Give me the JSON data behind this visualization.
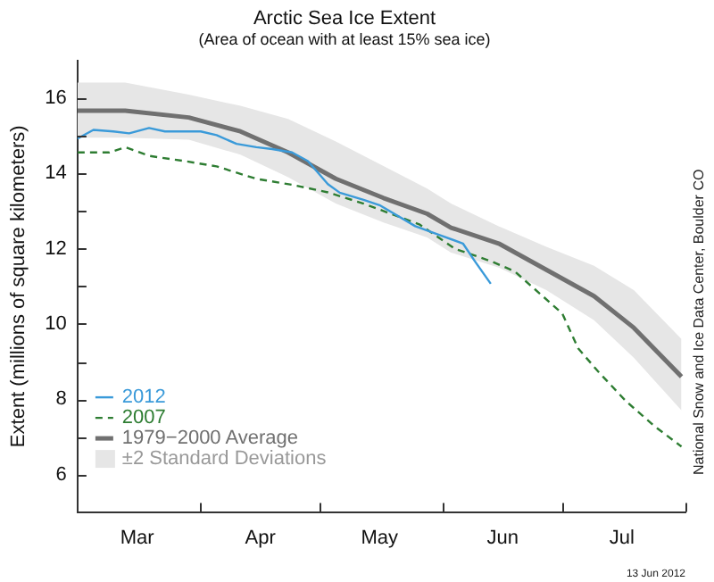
{
  "chart_data": {
    "type": "line",
    "title": "Arctic Sea Ice Extent",
    "subtitle": "(Area of ocean with at least 15% sea ice)",
    "ylabel": "Extent (millions of square kilometers)",
    "annotations": [
      "National Snow and Ice Data Center, Boulder CO",
      "13 Jun 2012"
    ],
    "xlim": [
      "--03-01",
      "--08-01"
    ],
    "xticks": [
      {
        "value": "--03-01",
        "label": null
      },
      {
        "value": "--03-16",
        "label": "Mar"
      },
      {
        "value": "--04-01",
        "label": null
      },
      {
        "value": "--04-16",
        "label": "Apr"
      },
      {
        "value": "--05-01",
        "label": null
      },
      {
        "value": "--05-16",
        "label": "May"
      },
      {
        "value": "--06-01",
        "label": null
      },
      {
        "value": "--06-16",
        "label": "Jun"
      },
      {
        "value": "--07-01",
        "label": null
      },
      {
        "value": "--07-16",
        "label": "Jul"
      },
      {
        "value": "--08-01",
        "label": null
      }
    ],
    "ylim": [
      5,
      17
    ],
    "yticks": [
      6,
      {
        "value": 7,
        "label": null
      },
      8,
      {
        "value": 9,
        "label": null
      },
      10,
      {
        "value": 11,
        "label": null
      },
      12,
      {
        "value": 13,
        "label": null
      },
      14,
      {
        "value": 15,
        "label": null
      },
      16
    ],
    "grid": false,
    "legend": "bottom left",
    "marker": "none",
    "series": [
      {
        "name": "±2 Standard Deviations",
        "type": "area",
        "color": "#e6e6e6",
        "x": [
          "--03-01",
          "--03-13",
          "--03-29",
          "--04-11",
          "--04-23",
          "--05-05",
          "--05-17",
          "--05-28",
          "--06-03",
          "--06-15",
          "--06-27",
          "--07-09",
          "--07-19",
          "--07-31"
        ],
        "values": [
          null,
          null,
          null,
          null,
          null,
          null,
          null,
          null,
          null,
          null,
          null,
          null,
          null,
          null
        ],
        "lower": [
          14.95,
          14.95,
          14.9,
          14.5,
          13.9,
          13.2,
          12.7,
          12.3,
          11.9,
          11.5,
          10.9,
          10.1,
          9.1,
          7.7
        ],
        "upper": [
          16.42,
          16.42,
          16.1,
          15.8,
          15.45,
          14.85,
          14.2,
          13.6,
          13.2,
          12.6,
          12.05,
          11.55,
          10.9,
          9.6
        ]
      },
      {
        "name": "1979−2000 Average",
        "color": "#707070",
        "x": [
          "--03-01",
          "--03-13",
          "--03-29",
          "--04-11",
          "--04-23",
          "--05-05",
          "--05-17",
          "--05-28",
          "--06-03",
          "--06-15",
          "--06-27",
          "--07-09",
          "--07-19",
          "--07-31"
        ],
        "values": [
          15.67,
          15.67,
          15.49,
          15.12,
          14.56,
          13.86,
          13.35,
          12.93,
          12.56,
          12.14,
          11.44,
          10.74,
          9.9,
          8.6
        ]
      },
      {
        "name": "2007",
        "color": "#2e7d32",
        "line_style": "dashed",
        "x": [
          "--03-01",
          "--03-09",
          "--03-13",
          "--03-19",
          "--03-28",
          "--04-05",
          "--04-15",
          "--04-24",
          "--05-03",
          "--05-12",
          "--05-26",
          "--06-04",
          "--06-13",
          "--06-19",
          "--06-25",
          "--07-01",
          "--07-05",
          "--07-10",
          "--07-17",
          "--07-24",
          "--07-31"
        ],
        "values": [
          14.56,
          14.56,
          14.7,
          14.47,
          14.33,
          14.19,
          13.86,
          13.7,
          13.5,
          13.2,
          12.65,
          12.0,
          11.67,
          11.4,
          10.84,
          10.28,
          9.35,
          8.74,
          7.95,
          7.3,
          6.74
        ]
      },
      {
        "name": "2012",
        "color": "#3a9ad9",
        "x": [
          "--03-01",
          "--03-05",
          "--03-10",
          "--03-14",
          "--03-19",
          "--03-23",
          "--03-28",
          "--04-01",
          "--04-05",
          "--04-10",
          "--04-15",
          "--04-19",
          "--04-24",
          "--04-28",
          "--05-03",
          "--05-06",
          "--05-12",
          "--05-16",
          "--05-25",
          "--05-31",
          "--06-06",
          "--06-09",
          "--06-13"
        ],
        "values": [
          14.93,
          15.16,
          15.12,
          15.07,
          15.21,
          15.12,
          15.12,
          15.12,
          15.02,
          14.79,
          14.7,
          14.65,
          14.56,
          14.33,
          13.72,
          13.49,
          13.3,
          13.16,
          12.6,
          12.37,
          12.14,
          11.67,
          11.07
        ]
      }
    ]
  }
}
